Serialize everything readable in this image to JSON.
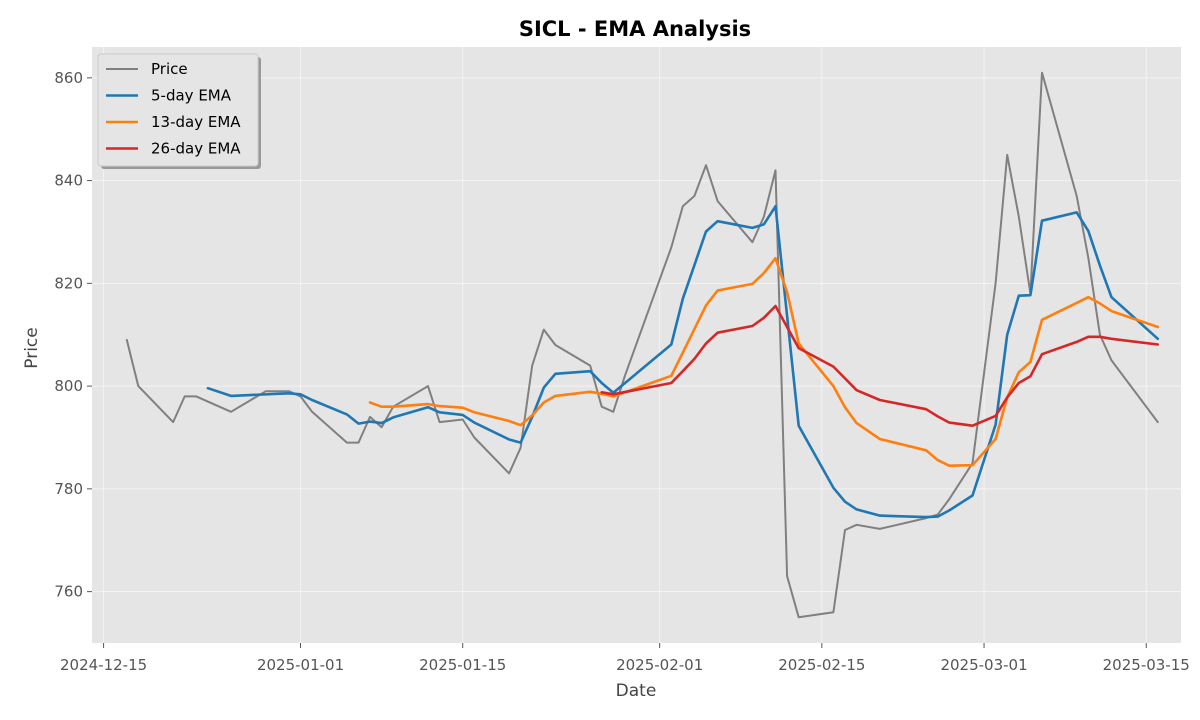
{
  "chart_data": {
    "type": "line",
    "title": "SICL - EMA Analysis",
    "xlabel": "Date",
    "ylabel": "Price",
    "xlim": [
      "2024-12-14",
      "2025-03-18"
    ],
    "ylim": [
      750,
      866
    ],
    "x_ticks": [
      "2024-12-15",
      "2025-01-01",
      "2025-01-15",
      "2025-02-01",
      "2025-02-15",
      "2025-03-01",
      "2025-03-15"
    ],
    "y_ticks": [
      760,
      780,
      800,
      820,
      840,
      860
    ],
    "grid": true,
    "legend_position": "top-left",
    "colors": {
      "background": "#e5e5e5",
      "price": "#808080",
      "ema5": "#1f77b4",
      "ema13": "#ff7f0e",
      "ema26": "#d62728"
    },
    "series": [
      {
        "name": "Price",
        "color": "#808080",
        "points": [
          [
            "2024-12-17",
            809
          ],
          [
            "2024-12-18",
            800
          ],
          [
            "2024-12-21",
            793
          ],
          [
            "2024-12-22",
            798
          ],
          [
            "2024-12-23",
            798
          ],
          [
            "2024-12-26",
            795
          ],
          [
            "2024-12-29",
            799
          ],
          [
            "2024-12-31",
            799
          ],
          [
            "2025-01-01",
            798
          ],
          [
            "2025-01-02",
            795
          ],
          [
            "2025-01-05",
            789
          ],
          [
            "2025-01-06",
            789
          ],
          [
            "2025-01-07",
            794
          ],
          [
            "2025-01-08",
            792
          ],
          [
            "2025-01-09",
            796
          ],
          [
            "2025-01-12",
            800
          ],
          [
            "2025-01-13",
            793
          ],
          [
            "2025-01-15",
            793.5
          ],
          [
            "2025-01-16",
            790
          ],
          [
            "2025-01-19",
            783
          ],
          [
            "2025-01-20",
            788
          ],
          [
            "2025-01-21",
            804
          ],
          [
            "2025-01-22",
            811
          ],
          [
            "2025-01-23",
            808
          ],
          [
            "2025-01-26",
            804
          ],
          [
            "2025-01-27",
            796
          ],
          [
            "2025-01-28",
            795
          ],
          [
            "2025-01-29",
            802
          ],
          [
            "2025-02-02",
            827
          ],
          [
            "2025-02-03",
            835
          ],
          [
            "2025-02-04",
            837
          ],
          [
            "2025-02-05",
            843
          ],
          [
            "2025-02-06",
            836
          ],
          [
            "2025-02-09",
            828
          ],
          [
            "2025-02-10",
            833
          ],
          [
            "2025-02-11",
            842
          ],
          [
            "2025-02-12",
            763
          ],
          [
            "2025-02-13",
            755
          ],
          [
            "2025-02-16",
            756
          ],
          [
            "2025-02-17",
            772
          ],
          [
            "2025-02-18",
            773
          ],
          [
            "2025-02-20",
            772.2
          ],
          [
            "2025-02-24",
            774.3
          ],
          [
            "2025-02-25",
            775
          ],
          [
            "2025-02-26",
            778
          ],
          [
            "2025-02-28",
            785
          ],
          [
            "2025-03-02",
            820
          ],
          [
            "2025-03-03",
            845
          ],
          [
            "2025-03-04",
            833
          ],
          [
            "2025-03-05",
            818
          ],
          [
            "2025-03-06",
            861
          ],
          [
            "2025-03-09",
            837
          ],
          [
            "2025-03-10",
            825
          ],
          [
            "2025-03-11",
            810
          ],
          [
            "2025-03-12",
            805
          ],
          [
            "2025-03-16",
            793
          ]
        ]
      },
      {
        "name": "5-day EMA",
        "color": "#1f77b4",
        "points": [
          [
            "2024-12-24",
            799.6
          ],
          [
            "2024-12-26",
            798.1
          ],
          [
            "2024-12-31",
            798.6
          ],
          [
            "2025-01-01",
            798.4
          ],
          [
            "2025-01-02",
            797.3
          ],
          [
            "2025-01-05",
            794.5
          ],
          [
            "2025-01-06",
            792.7
          ],
          [
            "2025-01-07",
            793.1
          ],
          [
            "2025-01-08",
            792.8
          ],
          [
            "2025-01-09",
            793.9
          ],
          [
            "2025-01-12",
            795.9
          ],
          [
            "2025-01-13",
            794.9
          ],
          [
            "2025-01-15",
            794.4
          ],
          [
            "2025-01-16",
            792.9
          ],
          [
            "2025-01-19",
            789.6
          ],
          [
            "2025-01-20",
            789.0
          ],
          [
            "2025-01-21",
            794.0
          ],
          [
            "2025-01-22",
            799.7
          ],
          [
            "2025-01-23",
            802.4
          ],
          [
            "2025-01-26",
            802.9
          ],
          [
            "2025-01-27",
            800.6
          ],
          [
            "2025-01-28",
            798.7
          ],
          [
            "2025-02-02",
            808.1
          ],
          [
            "2025-02-03",
            817.0
          ],
          [
            "2025-02-05",
            830.1
          ],
          [
            "2025-02-06",
            832.1
          ],
          [
            "2025-02-09",
            830.8
          ],
          [
            "2025-02-10",
            831.5
          ],
          [
            "2025-02-11",
            835.0
          ],
          [
            "2025-02-13",
            792.3
          ],
          [
            "2025-02-16",
            780.2
          ],
          [
            "2025-02-17",
            777.5
          ],
          [
            "2025-02-18",
            776.0
          ],
          [
            "2025-02-20",
            774.8
          ],
          [
            "2025-02-24",
            774.5
          ],
          [
            "2025-02-25",
            774.6
          ],
          [
            "2025-02-26",
            775.8
          ],
          [
            "2025-02-28",
            778.7
          ],
          [
            "2025-03-02",
            792.5
          ],
          [
            "2025-03-03",
            810.0
          ],
          [
            "2025-03-04",
            817.6
          ],
          [
            "2025-03-05",
            817.7
          ],
          [
            "2025-03-06",
            832.2
          ],
          [
            "2025-03-09",
            833.8
          ],
          [
            "2025-03-10",
            830.2
          ],
          [
            "2025-03-11",
            823.5
          ],
          [
            "2025-03-12",
            817.3
          ],
          [
            "2025-03-16",
            809.2
          ]
        ]
      },
      {
        "name": "13-day EMA",
        "color": "#ff7f0e",
        "points": [
          [
            "2025-01-07",
            796.8
          ],
          [
            "2025-01-08",
            796.0
          ],
          [
            "2025-01-09",
            796.0
          ],
          [
            "2025-01-12",
            796.5
          ],
          [
            "2025-01-13",
            796.1
          ],
          [
            "2025-01-15",
            795.8
          ],
          [
            "2025-01-16",
            794.9
          ],
          [
            "2025-01-19",
            793.2
          ],
          [
            "2025-01-20",
            792.4
          ],
          [
            "2025-01-21",
            794.3
          ],
          [
            "2025-01-22",
            796.8
          ],
          [
            "2025-01-23",
            798.1
          ],
          [
            "2025-01-26",
            798.9
          ],
          [
            "2025-01-27",
            798.5
          ],
          [
            "2025-01-28",
            798.0
          ],
          [
            "2025-02-02",
            802.0
          ],
          [
            "2025-02-03",
            806.5
          ],
          [
            "2025-02-05",
            815.7
          ],
          [
            "2025-02-06",
            818.6
          ],
          [
            "2025-02-09",
            819.9
          ],
          [
            "2025-02-10",
            822.0
          ],
          [
            "2025-02-11",
            824.9
          ],
          [
            "2025-02-12",
            818.3
          ],
          [
            "2025-02-13",
            808.3
          ],
          [
            "2025-02-16",
            800.0
          ],
          [
            "2025-02-17",
            795.9
          ],
          [
            "2025-02-18",
            792.8
          ],
          [
            "2025-02-20",
            789.7
          ],
          [
            "2025-02-24",
            787.5
          ],
          [
            "2025-02-25",
            785.6
          ],
          [
            "2025-02-26",
            784.5
          ],
          [
            "2025-02-28",
            784.6
          ],
          [
            "2025-03-02",
            789.7
          ],
          [
            "2025-03-03",
            797.8
          ],
          [
            "2025-03-04",
            802.7
          ],
          [
            "2025-03-05",
            804.7
          ],
          [
            "2025-03-06",
            812.9
          ],
          [
            "2025-03-09",
            816.2
          ],
          [
            "2025-03-10",
            817.3
          ],
          [
            "2025-03-11",
            816.1
          ],
          [
            "2025-03-12",
            814.6
          ],
          [
            "2025-03-16",
            811.5
          ]
        ]
      },
      {
        "name": "26-day EMA",
        "color": "#d62728",
        "points": [
          [
            "2025-01-27",
            798.8
          ],
          [
            "2025-01-28",
            798.4
          ],
          [
            "2025-02-02",
            800.6
          ],
          [
            "2025-02-03",
            802.9
          ],
          [
            "2025-02-04",
            805.3
          ],
          [
            "2025-02-05",
            808.3
          ],
          [
            "2025-02-06",
            810.4
          ],
          [
            "2025-02-09",
            811.7
          ],
          [
            "2025-02-10",
            813.3
          ],
          [
            "2025-02-11",
            815.6
          ],
          [
            "2025-02-13",
            807.4
          ],
          [
            "2025-02-16",
            803.8
          ],
          [
            "2025-02-17",
            801.5
          ],
          [
            "2025-02-18",
            799.2
          ],
          [
            "2025-02-20",
            797.3
          ],
          [
            "2025-02-24",
            795.5
          ],
          [
            "2025-02-25",
            794.1
          ],
          [
            "2025-02-26",
            792.9
          ],
          [
            "2025-02-28",
            792.3
          ],
          [
            "2025-03-02",
            794.2
          ],
          [
            "2025-03-03",
            797.8
          ],
          [
            "2025-03-04",
            800.6
          ],
          [
            "2025-03-05",
            801.9
          ],
          [
            "2025-03-06",
            806.2
          ],
          [
            "2025-03-09",
            808.6
          ],
          [
            "2025-03-10",
            809.6
          ],
          [
            "2025-03-11",
            809.6
          ],
          [
            "2025-03-12",
            809.2
          ],
          [
            "2025-03-16",
            808.1
          ]
        ]
      }
    ]
  }
}
